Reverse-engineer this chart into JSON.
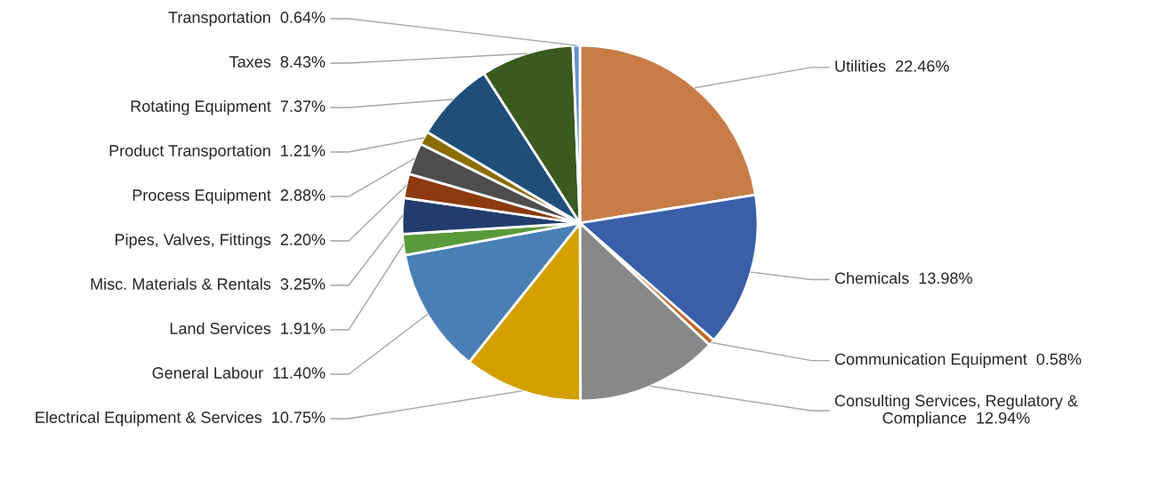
{
  "chart_data": {
    "type": "pie",
    "categories": [
      "Utilities",
      "Chemicals",
      "Communication Equipment",
      "Consulting Services, Regulatory & Compliance",
      "Electrical Equipment & Services",
      "General Labour",
      "Land Services",
      "Misc. Materials & Rentals",
      "Pipes, Valves, Fittings",
      "Process Equipment",
      "Product Transportation",
      "Rotating Equipment",
      "Taxes",
      "Transportation"
    ],
    "values": [
      22.46,
      13.98,
      0.58,
      12.94,
      10.75,
      11.4,
      1.91,
      3.25,
      2.2,
      2.88,
      1.21,
      7.37,
      8.43,
      0.64
    ],
    "value_labels": [
      "22.46%",
      "13.98%",
      "0.58%",
      "12.94%",
      "10.75%",
      "11.40%",
      "1.91%",
      "3.25%",
      "2.20%",
      "2.88%",
      "1.21%",
      "7.37%",
      "8.43%",
      "0.64%"
    ],
    "colors": [
      "#c77c48",
      "#3a5ea8",
      "#c0652a",
      "#888888",
      "#d4a000",
      "#4a7fb5",
      "#5a9a3a",
      "#223d6b",
      "#8b3a0f",
      "#4d4d4d",
      "#8a6d00",
      "#1f4e79",
      "#3a5a20",
      "#6a8fd0"
    ]
  }
}
